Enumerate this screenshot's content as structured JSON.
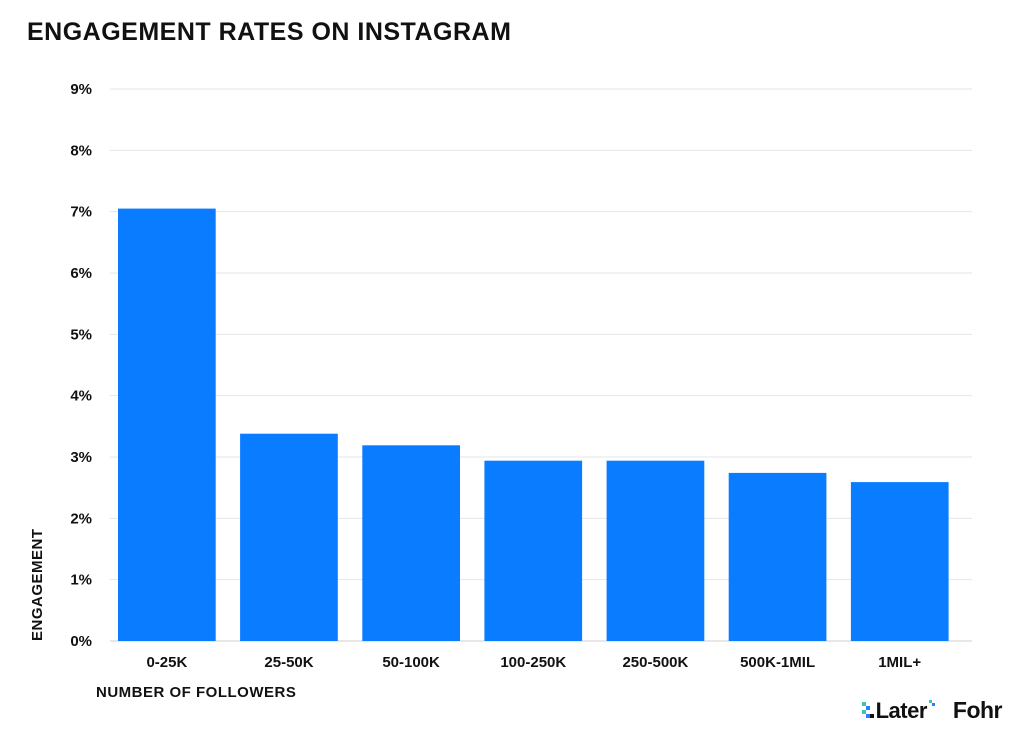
{
  "brand_colors": {
    "bar": "#0a7cff",
    "later_teal": "#36c7b8",
    "later_blue": "#2a7dff"
  },
  "chart_data": {
    "type": "bar",
    "title": "ENGAGEMENT RATES ON INSTAGRAM",
    "xlabel": "NUMBER OF FOLLOWERS",
    "ylabel": "ENGAGEMENT",
    "categories": [
      "0-25K",
      "25-50K",
      "50-100K",
      "100-250K",
      "250-500K",
      "500K-1MIL",
      "1MIL+"
    ],
    "values": [
      7.05,
      3.38,
      3.19,
      2.94,
      2.94,
      2.74,
      2.59
    ],
    "ylim": [
      0,
      9
    ],
    "yticks": [
      "0%",
      "1%",
      "2%",
      "3%",
      "4%",
      "5%",
      "6%",
      "7%",
      "8%",
      "9%"
    ],
    "grid": true,
    "legend": "none"
  },
  "logos": {
    "later": "Later",
    "fohr": "Fohr"
  }
}
